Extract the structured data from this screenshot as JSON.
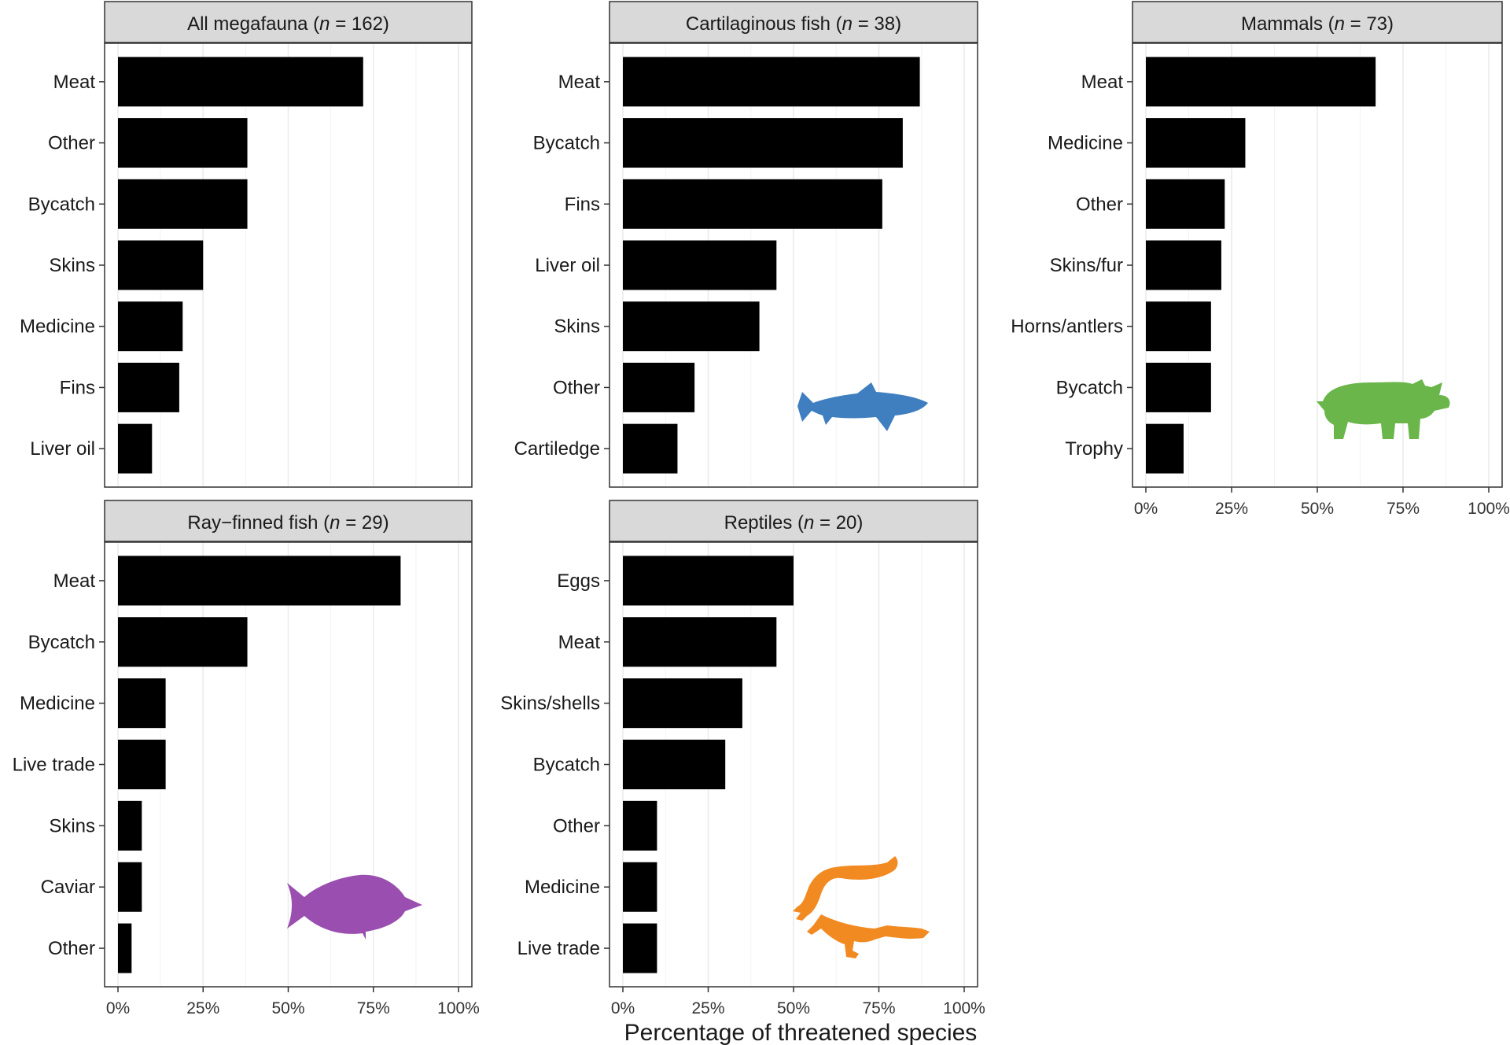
{
  "colors": {
    "bar": "#000000",
    "strip": "#d9d9d9",
    "grid": "#ebebeb",
    "shark": "#3f7fbf",
    "rhino": "#6ab64a",
    "fish": "#9a4fb0",
    "croc": "#f28a22"
  },
  "x_axis_title": "Percentage of threatened species",
  "chart_data": [
    {
      "type": "bar",
      "orientation": "horizontal",
      "title": "All megafauna (n = 162)",
      "title_parts": [
        "All megafauna (",
        "n",
        " = 162)"
      ],
      "categories": [
        "Meat",
        "Other",
        "Bycatch",
        "Skins",
        "Medicine",
        "Fins",
        "Liver oil"
      ],
      "values": [
        72,
        38,
        38,
        25,
        19,
        18,
        10
      ],
      "xlim": [
        0,
        100
      ],
      "xticks": [
        "0%",
        "25%",
        "50%",
        "75%",
        "100%"
      ],
      "show_ticks": false,
      "icon": null
    },
    {
      "type": "bar",
      "orientation": "horizontal",
      "title": "Cartilaginous fish (n = 38)",
      "title_parts": [
        "Cartilaginous fish (",
        "n",
        " = 38)"
      ],
      "categories": [
        "Meat",
        "Bycatch",
        "Fins",
        "Liver oil",
        "Skins",
        "Other",
        "Cartiledge"
      ],
      "values": [
        87,
        82,
        76,
        45,
        40,
        21,
        16
      ],
      "xlim": [
        0,
        100
      ],
      "xticks": [
        "0%",
        "25%",
        "50%",
        "75%",
        "100%"
      ],
      "show_ticks": false,
      "icon": "shark-icon"
    },
    {
      "type": "bar",
      "orientation": "horizontal",
      "title": "Mammals (n = 73)",
      "title_parts": [
        "Mammals (",
        "n",
        " = 73)"
      ],
      "categories": [
        "Meat",
        "Medicine",
        "Other",
        "Skins/fur",
        "Horns/antlers",
        "Bycatch",
        "Trophy"
      ],
      "values": [
        67,
        29,
        23,
        22,
        19,
        19,
        11
      ],
      "xlim": [
        0,
        100
      ],
      "xticks": [
        "0%",
        "25%",
        "50%",
        "75%",
        "100%"
      ],
      "show_ticks": true,
      "icon": "rhino-icon"
    },
    {
      "type": "bar",
      "orientation": "horizontal",
      "title": "Ray-finned fish (n = 29)",
      "title_parts": [
        "Ray−finned fish (",
        "n",
        " = 29)"
      ],
      "categories": [
        "Meat",
        "Bycatch",
        "Medicine",
        "Live trade",
        "Skins",
        "Caviar",
        "Other"
      ],
      "values": [
        83,
        38,
        14,
        14,
        7,
        7,
        4
      ],
      "xlim": [
        0,
        100
      ],
      "xticks": [
        "0%",
        "25%",
        "50%",
        "75%",
        "100%"
      ],
      "show_ticks": true,
      "icon": "fish-icon"
    },
    {
      "type": "bar",
      "orientation": "horizontal",
      "title": "Reptiles (n = 20)",
      "title_parts": [
        "Reptiles (",
        "n",
        " = 20)"
      ],
      "categories": [
        "Eggs",
        "Meat",
        "Skins/shells",
        "Bycatch",
        "Other",
        "Medicine",
        "Live trade"
      ],
      "values": [
        50,
        45,
        35,
        30,
        10,
        10,
        10
      ],
      "xlim": [
        0,
        100
      ],
      "xticks": [
        "0%",
        "25%",
        "50%",
        "75%",
        "100%"
      ],
      "show_ticks": true,
      "icon": "crocodile-icon"
    }
  ]
}
